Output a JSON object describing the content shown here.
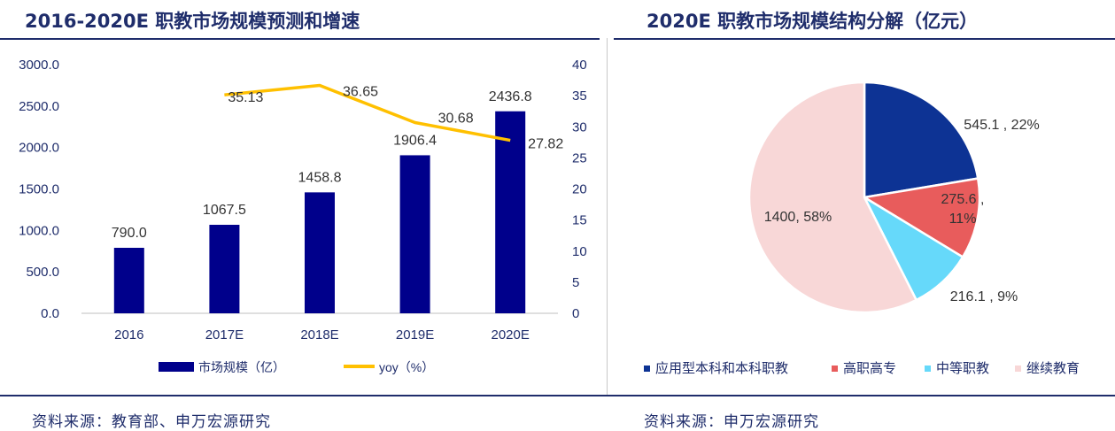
{
  "left_title": "2016-2020E 职教市场规模预测和增速",
  "right_title": "2020E 职教市场规模结构分解（亿元）",
  "left_source": "资料来源：教育部、申万宏源研究",
  "right_source": "资料来源：申万宏源研究",
  "colors": {
    "bar": "#00008b",
    "line": "#ffc000",
    "title": "#1f2d6b"
  },
  "chart_data": [
    {
      "type": "bar",
      "title": "2016-2020E 职教市场规模预测和增速",
      "categories": [
        "2016",
        "2017E",
        "2018E",
        "2019E",
        "2020E"
      ],
      "series": [
        {
          "name": "市场规模（亿）",
          "type": "bar",
          "axis": "left",
          "values": [
            790.0,
            1067.5,
            1458.8,
            1906.4,
            2436.8
          ],
          "labels": [
            "790.0",
            "1067.5",
            "1458.8",
            "1906.4",
            "2436.8"
          ]
        },
        {
          "name": "yoy（%）",
          "type": "line",
          "axis": "right",
          "values": [
            null,
            35.13,
            36.65,
            30.68,
            27.82
          ],
          "labels": [
            "",
            "35.13",
            "36.65",
            "30.68",
            "27.82"
          ]
        }
      ],
      "ylim": [
        0,
        3000
      ],
      "y_ticks": [
        "3000.0",
        "2500.0",
        "2000.0",
        "1500.0",
        "1000.0",
        "500.0",
        "0.0"
      ],
      "y2lim": [
        0,
        40
      ],
      "y2_ticks": [
        "40",
        "35",
        "30",
        "25",
        "20",
        "15",
        "10",
        "5",
        "0"
      ],
      "legend_position": "bottom"
    },
    {
      "type": "pie",
      "title": "2020E 职教市场规模结构分解（亿元）",
      "slices": [
        {
          "name": "应用型本科和本科职教",
          "value": 545.1,
          "percent": 22,
          "label": "545.1 , 22%",
          "color": "#0d3394"
        },
        {
          "name": "高职高专",
          "value": 275.6,
          "percent": 11,
          "label": "275.6 , 11%",
          "color": "#e85c5c"
        },
        {
          "name": "中等职教",
          "value": 216.1,
          "percent": 9,
          "label": "216.1 , 9%",
          "color": "#66d9fa"
        },
        {
          "name": "继续教育",
          "value": 1400,
          "percent": 58,
          "label": "1400, 58%",
          "color": "#f8d7d7"
        }
      ],
      "legend_position": "bottom"
    }
  ]
}
